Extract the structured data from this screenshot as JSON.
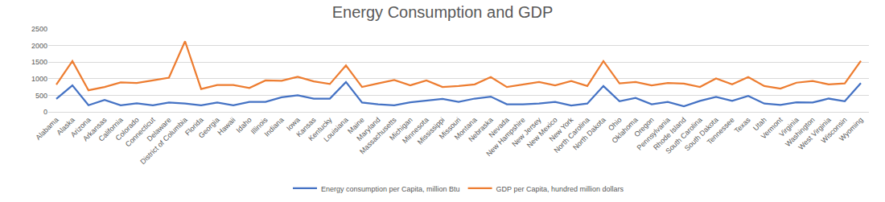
{
  "chart_data": {
    "type": "line",
    "title": "Energy Consumption and GDP",
    "categories": [
      "Alabama",
      "Alaska",
      "Arizona",
      "Arkansas",
      "California",
      "Colorado",
      "Connecticut",
      "Delaware",
      "District of Columbia",
      "Florida",
      "Georgia",
      "Hawaii",
      "Idaho",
      "Illinois",
      "Indiana",
      "Iowa",
      "Kansas",
      "Kentucky",
      "Louisiana",
      "Maine",
      "Maryland",
      "Massachusetts",
      "Michigan",
      "Minnesota",
      "Mississippi",
      "Missouri",
      "Montana",
      "Nebraska",
      "Nevada",
      "New Hampshire",
      "New Jersey",
      "New Mexico",
      "New York",
      "North Carolina",
      "North Dakota",
      "Ohio",
      "Oklahoma",
      "Oregon",
      "Pennsylvania",
      "Rhode Island",
      "South Carolina",
      "South Dakota",
      "Tennessee",
      "Texas",
      "Utah",
      "Vermont",
      "Virginia",
      "Washington",
      "West Virginia",
      "Wisconsin",
      "Wyoming"
    ],
    "series": [
      {
        "name": "Energy consumption per Capita, million Btu",
        "color": "#4472c4",
        "values": [
          390,
          800,
          200,
          360,
          200,
          260,
          200,
          280,
          250,
          200,
          280,
          200,
          300,
          300,
          440,
          500,
          400,
          400,
          900,
          280,
          230,
          200,
          290,
          340,
          390,
          300,
          400,
          460,
          230,
          230,
          250,
          300,
          190,
          250,
          780,
          320,
          420,
          230,
          300,
          170,
          330,
          450,
          330,
          480,
          250,
          210,
          290,
          280,
          400,
          320,
          870
        ]
      },
      {
        "name": "GDP per Capita, hundred million dollars",
        "color": "#ed7d31",
        "values": [
          820,
          1530,
          650,
          750,
          890,
          870,
          950,
          1030,
          2130,
          690,
          810,
          810,
          720,
          950,
          940,
          1060,
          920,
          840,
          1400,
          750,
          860,
          960,
          800,
          950,
          750,
          780,
          830,
          1050,
          750,
          830,
          900,
          800,
          930,
          780,
          1530,
          860,
          900,
          800,
          870,
          850,
          750,
          1010,
          830,
          1050,
          780,
          700,
          880,
          930,
          830,
          860,
          1540
        ]
      }
    ],
    "ylim": [
      0,
      2500
    ],
    "yticks": [
      0,
      500,
      1000,
      1500,
      2000,
      2500
    ],
    "grid": true,
    "legend": "bottom"
  }
}
